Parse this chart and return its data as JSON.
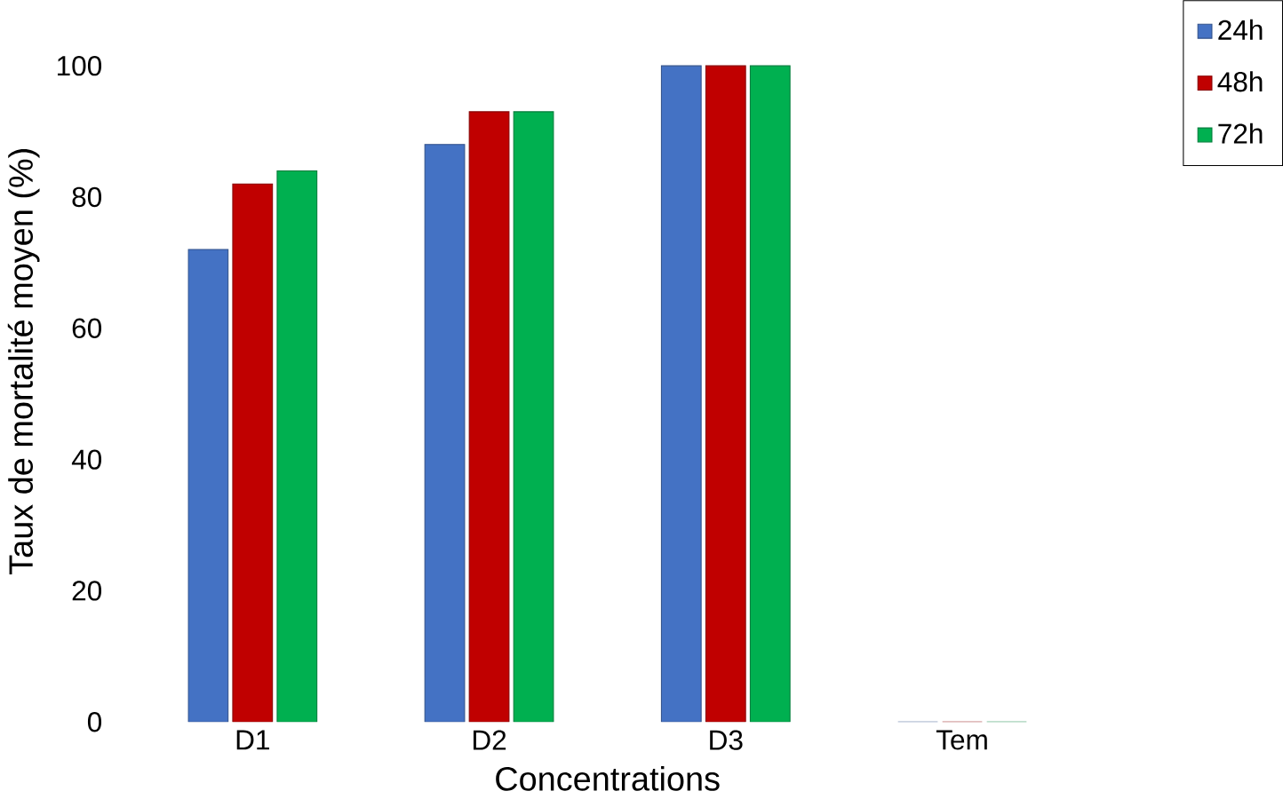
{
  "chart_data": {
    "type": "bar",
    "xlabel": "Concentrations",
    "ylabel": "Taux de mortalité moyen (%)",
    "categories": [
      "D1",
      "D2",
      "D3",
      "Tem"
    ],
    "series": [
      {
        "name": "24h",
        "color": "#4472c4",
        "values": [
          72,
          88,
          100,
          0
        ]
      },
      {
        "name": "48h",
        "color": "#c00000",
        "values": [
          82,
          93,
          100,
          0
        ]
      },
      {
        "name": "72h",
        "color": "#00b050",
        "values": [
          84,
          93,
          100,
          0
        ]
      }
    ],
    "ylim": [
      0,
      100
    ],
    "yticks": [
      0,
      20,
      40,
      60,
      80,
      100
    ],
    "grid": false,
    "legend": "top right"
  }
}
